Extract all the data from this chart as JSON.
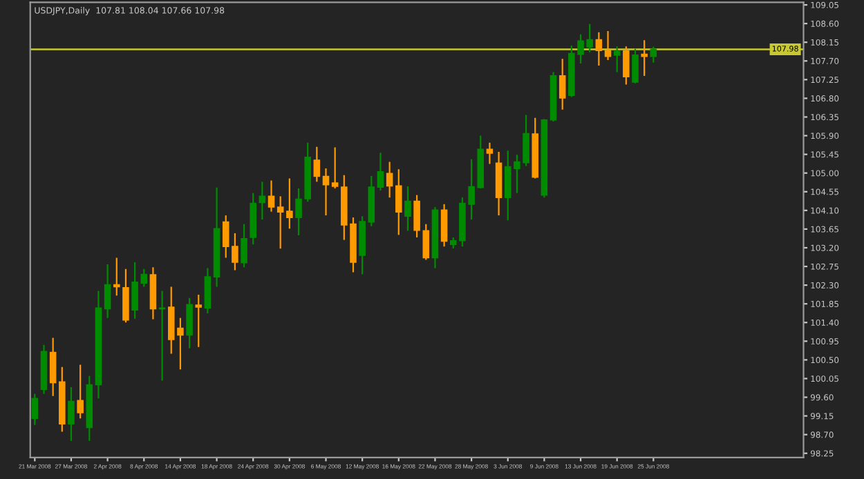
{
  "chart_data": {
    "type": "candlestick",
    "title": "USDJPY,Daily  107.81 108.04 107.66 107.98",
    "categories": [
      "21 Mar 2008",
      null,
      null,
      null,
      "27 Mar 2008",
      null,
      null,
      null,
      "2 Apr 2008",
      null,
      null,
      null,
      "8 Apr 2008",
      null,
      null,
      null,
      "14 Apr 2008",
      null,
      null,
      null,
      "18 Apr 2008",
      null,
      null,
      null,
      "24 Apr 2008",
      null,
      null,
      null,
      "30 Apr 2008",
      null,
      null,
      null,
      "6 May 2008",
      null,
      null,
      null,
      "12 May 2008",
      null,
      null,
      null,
      "16 May 2008",
      null,
      null,
      null,
      "22 May 2008",
      null,
      null,
      null,
      "28 May 2008",
      null,
      null,
      null,
      "3 Jun 2008",
      null,
      null,
      null,
      "9 Jun 2008",
      null,
      null,
      null,
      "13 Jun 2008",
      null,
      null,
      null,
      "19 Jun 2008",
      null,
      null,
      null,
      "25 Jun 2008",
      null,
      null,
      null,
      null,
      null,
      null,
      null,
      null,
      null,
      null,
      null,
      null,
      null,
      null,
      null,
      null
    ],
    "ohlc": [
      [
        99.09,
        99.68,
        98.93,
        99.57
      ],
      [
        99.79,
        100.86,
        99.68,
        100.7
      ],
      [
        100.68,
        101.03,
        99.63,
        99.95
      ],
      [
        99.97,
        100.33,
        98.77,
        98.96
      ],
      [
        98.96,
        99.84,
        98.55,
        99.5
      ],
      [
        99.52,
        100.38,
        99.09,
        99.23
      ],
      [
        98.87,
        100.11,
        98.55,
        99.9
      ],
      [
        99.9,
        102.16,
        99.57,
        101.75
      ],
      [
        101.73,
        102.8,
        101.51,
        102.31
      ],
      [
        102.31,
        102.96,
        102.05,
        102.26
      ],
      [
        102.24,
        102.69,
        101.4,
        101.46
      ],
      [
        101.7,
        102.85,
        101.49,
        102.37
      ],
      [
        102.35,
        102.69,
        102.26,
        102.56
      ],
      [
        102.55,
        102.73,
        101.48,
        101.73
      ],
      [
        101.73,
        102.16,
        100.0,
        101.75
      ],
      [
        101.77,
        102.26,
        100.65,
        100.99
      ],
      [
        101.26,
        101.51,
        100.27,
        101.1
      ],
      [
        101.1,
        101.99,
        100.78,
        101.83
      ],
      [
        101.82,
        102.07,
        100.81,
        101.77
      ],
      [
        101.75,
        102.71,
        101.62,
        102.5
      ],
      [
        102.5,
        104.65,
        102.26,
        103.66
      ],
      [
        103.82,
        103.98,
        102.96,
        103.23
      ],
      [
        103.23,
        103.55,
        102.66,
        102.85
      ],
      [
        102.84,
        103.77,
        102.73,
        103.42
      ],
      [
        103.45,
        104.52,
        103.28,
        104.27
      ],
      [
        104.29,
        104.79,
        103.88,
        104.44
      ],
      [
        104.44,
        104.82,
        104.07,
        104.18
      ],
      [
        104.18,
        104.44,
        103.18,
        104.06
      ],
      [
        104.08,
        104.87,
        103.66,
        103.93
      ],
      [
        103.93,
        104.63,
        103.5,
        104.37
      ],
      [
        104.38,
        105.73,
        104.31,
        105.38
      ],
      [
        105.31,
        105.63,
        104.79,
        104.92
      ],
      [
        104.92,
        105.11,
        103.98,
        104.72
      ],
      [
        104.76,
        105.62,
        104.63,
        104.68
      ],
      [
        104.66,
        104.95,
        103.39,
        103.75
      ],
      [
        103.77,
        103.93,
        102.61,
        102.85
      ],
      [
        103.02,
        103.96,
        102.56,
        103.83
      ],
      [
        103.82,
        104.93,
        103.72,
        104.66
      ],
      [
        104.66,
        105.49,
        104.58,
        105.03
      ],
      [
        104.99,
        105.27,
        104.41,
        104.69
      ],
      [
        104.69,
        105.09,
        103.51,
        104.06
      ],
      [
        103.96,
        104.68,
        103.61,
        104.32
      ],
      [
        104.32,
        104.47,
        103.45,
        103.62
      ],
      [
        103.61,
        103.77,
        102.91,
        102.96
      ],
      [
        102.96,
        104.18,
        102.71,
        104.11
      ],
      [
        104.11,
        104.25,
        103.23,
        103.36
      ],
      [
        103.28,
        103.45,
        103.18,
        103.37
      ],
      [
        103.37,
        104.41,
        103.23,
        104.27
      ],
      [
        104.25,
        105.33,
        103.88,
        104.67
      ],
      [
        104.65,
        105.9,
        104.63,
        105.57
      ],
      [
        105.57,
        105.73,
        105.22,
        105.48
      ],
      [
        105.24,
        105.51,
        103.98,
        104.41
      ],
      [
        104.41,
        105.54,
        103.86,
        105.15
      ],
      [
        105.11,
        105.44,
        104.52,
        105.27
      ],
      [
        105.25,
        106.4,
        105.17,
        105.95
      ],
      [
        105.94,
        106.33,
        104.87,
        104.9
      ],
      [
        104.47,
        106.3,
        104.41,
        106.28
      ],
      [
        106.28,
        107.43,
        106.24,
        107.34
      ],
      [
        107.34,
        107.75,
        106.53,
        106.81
      ],
      [
        106.87,
        108.07,
        106.83,
        107.88
      ],
      [
        107.86,
        108.34,
        107.64,
        108.18
      ],
      [
        108.04,
        108.59,
        107.91,
        108.21
      ],
      [
        108.21,
        108.39,
        107.59,
        107.95
      ],
      [
        107.95,
        108.42,
        107.72,
        107.81
      ],
      [
        107.84,
        108.05,
        107.43,
        107.93
      ],
      [
        107.94,
        108.05,
        107.13,
        107.32
      ],
      [
        107.19,
        107.99,
        107.16,
        107.84
      ],
      [
        107.86,
        108.2,
        107.34,
        107.81
      ],
      [
        107.81,
        108.04,
        107.66,
        107.98
      ],
      null,
      null,
      null,
      null,
      null,
      null,
      null,
      null,
      null,
      null,
      null,
      null,
      null,
      null,
      null,
      null
    ],
    "colors": [
      "#008c00",
      "#008c00",
      "#ff9a00",
      "#ff9a00",
      "#008c00",
      "#ff9a00",
      "#008c00",
      "#008c00",
      "#008c00",
      "#ff9a00",
      "#ff9a00",
      "#008c00",
      "#008c00",
      "#ff9a00",
      "#008c00",
      "#ff9a00",
      "#ff9a00",
      "#008c00",
      "#ff9a00",
      "#008c00",
      "#008c00",
      "#ff9a00",
      "#ff9a00",
      "#008c00",
      "#008c00",
      "#008c00",
      "#ff9a00",
      "#ff9a00",
      "#ff9a00",
      "#008c00",
      "#008c00",
      "#ff9a00",
      "#ff9a00",
      "#ff9a00",
      "#ff9a00",
      "#ff9a00",
      "#008c00",
      "#008c00",
      "#008c00",
      "#ff9a00",
      "#ff9a00",
      "#008c00",
      "#ff9a00",
      "#ff9a00",
      "#008c00",
      "#ff9a00",
      "#008c00",
      "#008c00",
      "#008c00",
      "#008c00",
      "#ff9a00",
      "#ff9a00",
      "#008c00",
      "#008c00",
      "#008c00",
      "#ff9a00",
      "#008c00",
      "#008c00",
      "#ff9a00",
      "#008c00",
      "#008c00",
      "#008c00",
      "#ff9a00",
      "#ff9a00",
      "#008c00",
      "#ff9a00",
      "#008c00",
      "#ff9a00",
      "#008c00",
      null,
      null,
      null,
      null,
      null,
      null,
      null,
      null,
      null,
      null,
      null,
      null,
      null,
      null,
      null,
      null
    ],
    "ylim": [
      98.15,
      109.11
    ],
    "yticks": [
      109.05,
      {
        "value": 108.6,
        "label": "108.60"
      },
      108.15,
      {
        "value": 107.7,
        "label": "107.70"
      },
      107.25,
      {
        "value": 106.8,
        "label": "106.80"
      },
      106.35,
      {
        "value": 105.9,
        "label": "105.90"
      },
      105.45,
      {
        "value": 105.0,
        "label": "105.00"
      },
      104.55,
      {
        "value": 104.1,
        "label": "104.10"
      },
      103.65,
      {
        "value": 103.2,
        "label": "103.20"
      },
      102.75,
      {
        "value": 102.3,
        "label": "102.30"
      },
      101.85,
      {
        "value": 101.4,
        "label": "101.40"
      },
      100.95,
      {
        "value": 100.5,
        "label": "100.50"
      },
      100.05,
      {
        "value": 99.6,
        "label": "99.60"
      },
      99.15,
      {
        "value": 98.7,
        "label": "98.70"
      },
      98.25
    ],
    "ref_lines": [
      {
        "axis": "y",
        "value": 107.98,
        "label": "107.98",
        "color": "#c8c832",
        "line_style": "solid"
      }
    ],
    "grid": false,
    "legend": false
  }
}
